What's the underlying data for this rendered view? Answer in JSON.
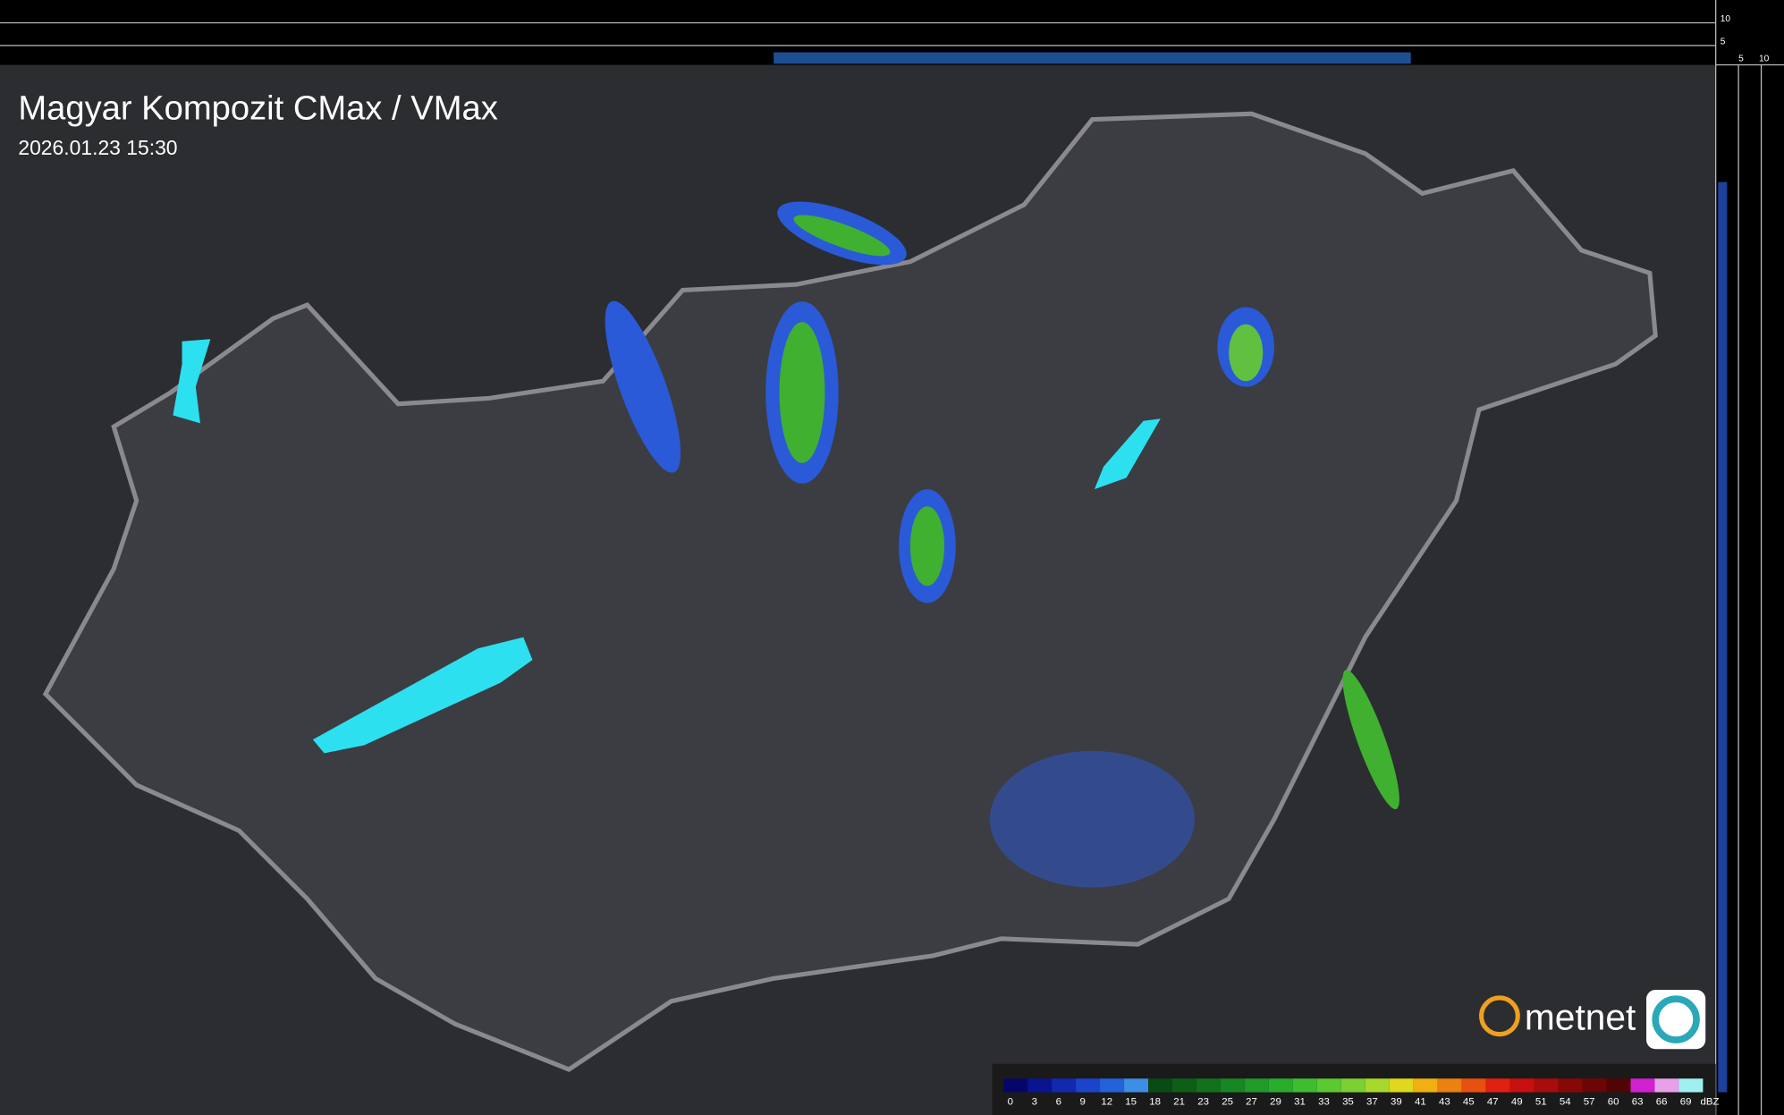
{
  "header": {
    "title": "Magyar Kompozit CMax / VMax",
    "timestamp": "2026.01.23 15:30"
  },
  "side_axis": {
    "top_labels": [
      10,
      5
    ],
    "bottom_labels": [
      5,
      10
    ]
  },
  "logo": {
    "text": "metnet"
  },
  "legend": {
    "unit": "dBZ",
    "stops": [
      {
        "value": 0,
        "color": "#06066a"
      },
      {
        "value": 3,
        "color": "#0a1490"
      },
      {
        "value": 6,
        "color": "#1228b0"
      },
      {
        "value": 9,
        "color": "#1a44cc"
      },
      {
        "value": 12,
        "color": "#2462dc"
      },
      {
        "value": 15,
        "color": "#3c8ee6"
      },
      {
        "value": 18,
        "color": "#0a4a14"
      },
      {
        "value": 21,
        "color": "#0e5e18"
      },
      {
        "value": 23,
        "color": "#12721c"
      },
      {
        "value": 25,
        "color": "#188622"
      },
      {
        "value": 27,
        "color": "#209a28"
      },
      {
        "value": 29,
        "color": "#2aac2e"
      },
      {
        "value": 31,
        "color": "#40bc30"
      },
      {
        "value": 33,
        "color": "#5cc832"
      },
      {
        "value": 35,
        "color": "#7cd032"
      },
      {
        "value": 37,
        "color": "#a8d82c"
      },
      {
        "value": 39,
        "color": "#e0d81c"
      },
      {
        "value": 41,
        "color": "#f0b010"
      },
      {
        "value": 43,
        "color": "#ec8010"
      },
      {
        "value": 45,
        "color": "#e85010"
      },
      {
        "value": 47,
        "color": "#e02010"
      },
      {
        "value": 49,
        "color": "#c81010"
      },
      {
        "value": 51,
        "color": "#a80c0c"
      },
      {
        "value": 54,
        "color": "#880808"
      },
      {
        "value": 57,
        "color": "#6c0606"
      },
      {
        "value": 60,
        "color": "#500404"
      },
      {
        "value": 63,
        "color": "#d020d0"
      },
      {
        "value": 66,
        "color": "#e8a0e8"
      },
      {
        "value": 69,
        "color": "#a0f0f0"
      }
    ]
  }
}
